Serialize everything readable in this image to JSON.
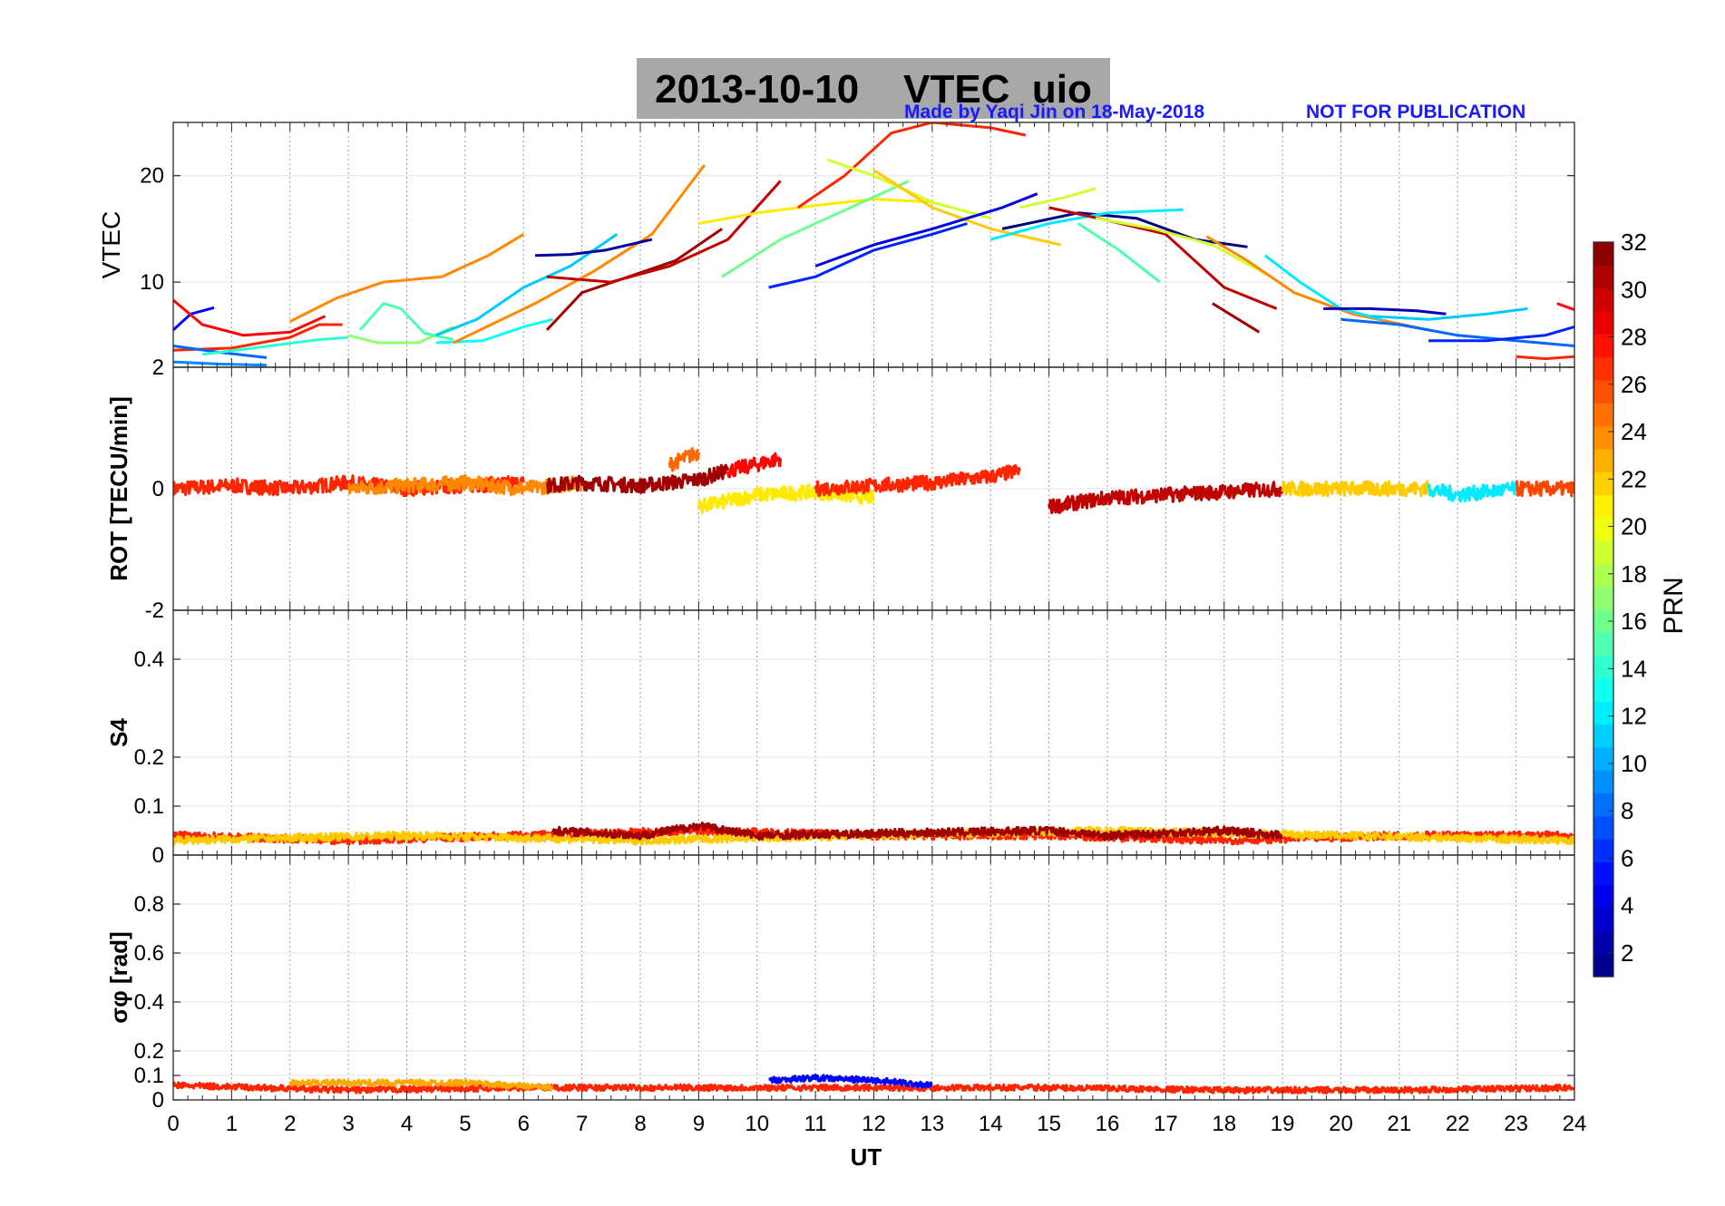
{
  "header": {
    "title": "2013-10-10    VTEC  uio",
    "credit": "Made by Yaqi Jin on 18-May-2018",
    "notice": "NOT FOR PUBLICATION"
  },
  "colorbar": {
    "label": "PRN",
    "ticks": [
      "2",
      "4",
      "6",
      "8",
      "10",
      "12",
      "14",
      "16",
      "18",
      "20",
      "22",
      "24",
      "26",
      "28",
      "30",
      "32"
    ],
    "range": [
      1,
      32
    ],
    "colormap": "jet"
  },
  "chart_data": [
    {
      "type": "line",
      "panel": "vtec",
      "ylabel": "VTEC",
      "xlabel": "",
      "xlim": [
        0,
        24
      ],
      "ylim": [
        2,
        25
      ],
      "yticks": [
        "10",
        "20"
      ],
      "grid": true,
      "series": [
        {
          "prn": 5,
          "x": [
            0.0,
            0.3,
            0.7
          ],
          "y": [
            5.5,
            7.0,
            7.6
          ]
        },
        {
          "prn": 28,
          "x": [
            0.0,
            0.5,
            1.2,
            2.0,
            2.6
          ],
          "y": [
            8.3,
            6.0,
            5.0,
            5.3,
            6.8
          ]
        },
        {
          "prn": 27,
          "x": [
            0.0,
            1.0,
            2.0,
            2.5,
            2.9
          ],
          "y": [
            3.6,
            3.8,
            4.8,
            6.0,
            6.0
          ]
        },
        {
          "prn": 8,
          "x": [
            0.0,
            0.8,
            1.6
          ],
          "y": [
            4.0,
            3.4,
            2.9
          ]
        },
        {
          "prn": 9,
          "x": [
            0.0,
            0.8,
            1.6
          ],
          "y": [
            2.5,
            2.3,
            2.2
          ]
        },
        {
          "prn": 14,
          "x": [
            0.5,
            1.5,
            2.5,
            3.0
          ],
          "y": [
            3.2,
            3.9,
            4.6,
            4.8
          ]
        },
        {
          "prn": 24,
          "x": [
            2.0,
            2.8,
            3.6,
            4.6,
            5.4,
            6.0
          ],
          "y": [
            6.3,
            8.5,
            10.0,
            10.5,
            12.5,
            14.5
          ]
        },
        {
          "prn": 17,
          "x": [
            3.0,
            3.5,
            4.2,
            4.8
          ],
          "y": [
            5.0,
            4.3,
            4.3,
            5.8
          ]
        },
        {
          "prn": 15,
          "x": [
            3.2,
            3.6,
            3.9,
            4.3,
            4.8
          ],
          "y": [
            5.5,
            8.0,
            7.5,
            5.2,
            4.6
          ]
        },
        {
          "prn": 11,
          "x": [
            4.5,
            5.2,
            6.0,
            6.8,
            7.6
          ],
          "y": [
            5.0,
            6.5,
            9.5,
            11.5,
            14.5
          ]
        },
        {
          "prn": 13,
          "x": [
            4.5,
            5.3,
            6.0,
            6.5
          ],
          "y": [
            4.3,
            4.5,
            5.8,
            6.5
          ]
        },
        {
          "prn": 24,
          "x": [
            4.8,
            6.2,
            7.2,
            8.2,
            9.1
          ],
          "y": [
            4.3,
            8.0,
            11.0,
            14.5,
            21.0
          ]
        },
        {
          "prn": 2,
          "x": [
            6.2,
            6.8,
            7.4,
            8.2
          ],
          "y": [
            12.5,
            12.6,
            13.0,
            14.0
          ]
        },
        {
          "prn": 31,
          "x": [
            6.4,
            7.0,
            7.8,
            8.6,
            9.4
          ],
          "y": [
            5.5,
            9.0,
            10.5,
            12.0,
            15.0
          ]
        },
        {
          "prn": 30,
          "x": [
            6.4,
            7.5,
            8.5,
            9.5,
            10.4
          ],
          "y": [
            10.5,
            10.0,
            11.5,
            14.0,
            19.5
          ]
        },
        {
          "prn": 21,
          "x": [
            9.0,
            10.0,
            11.0,
            12.0,
            13.0,
            14.0
          ],
          "y": [
            15.5,
            16.5,
            17.2,
            17.8,
            17.5,
            16.0
          ]
        },
        {
          "prn": 16,
          "x": [
            9.4,
            10.4,
            11.4,
            12.6
          ],
          "y": [
            10.5,
            14.0,
            16.5,
            19.5
          ]
        },
        {
          "prn": 6,
          "x": [
            10.2,
            11.0,
            12.0,
            13.0,
            13.6
          ],
          "y": [
            9.5,
            10.5,
            13.0,
            14.5,
            15.5
          ]
        },
        {
          "prn": 27,
          "x": [
            10.7,
            11.5,
            12.3,
            13.0,
            14.0,
            14.6
          ],
          "y": [
            17.0,
            20.0,
            24.0,
            25.0,
            24.5,
            23.8
          ]
        },
        {
          "prn": 19,
          "x": [
            11.2,
            12.0,
            13.0,
            14.0
          ],
          "y": [
            21.5,
            20.0,
            17.5,
            16.0
          ]
        },
        {
          "prn": 22,
          "x": [
            12.0,
            13.0,
            14.0,
            15.2
          ],
          "y": [
            20.5,
            17.0,
            15.0,
            13.5
          ]
        },
        {
          "prn": 4,
          "x": [
            11.0,
            12.0,
            13.0,
            14.2,
            14.8
          ],
          "y": [
            11.5,
            13.5,
            15.0,
            17.0,
            18.3
          ]
        },
        {
          "prn": 1,
          "x": [
            14.2,
            15.5,
            16.5,
            17.5,
            18.4
          ],
          "y": [
            15.0,
            16.5,
            16.0,
            14.0,
            13.3
          ]
        },
        {
          "prn": 12,
          "x": [
            14.0,
            15.0,
            16.0,
            17.3
          ],
          "y": [
            14.0,
            15.5,
            16.5,
            16.8
          ]
        },
        {
          "prn": 19,
          "x": [
            14.5,
            15.3,
            15.8
          ],
          "y": [
            17.0,
            18.0,
            18.8
          ]
        },
        {
          "prn": 15,
          "x": [
            15.5,
            16.2,
            16.9
          ],
          "y": [
            15.5,
            13.0,
            10.0
          ]
        },
        {
          "prn": 30,
          "x": [
            15.0,
            16.0,
            17.0,
            18.0,
            18.9
          ],
          "y": [
            17.0,
            15.8,
            14.5,
            9.5,
            7.5
          ]
        },
        {
          "prn": 19,
          "x": [
            15.8,
            16.8,
            17.8,
            18.8
          ],
          "y": [
            16.0,
            15.0,
            13.5,
            10.5
          ]
        },
        {
          "prn": 31,
          "x": [
            17.8,
            18.6
          ],
          "y": [
            8.0,
            5.3
          ]
        },
        {
          "prn": 24,
          "x": [
            17.7,
            18.4,
            19.2,
            20.2,
            21.5
          ],
          "y": [
            14.3,
            12.0,
            9.0,
            7.0,
            5.5
          ]
        },
        {
          "prn": 12,
          "x": [
            18.7,
            19.3,
            20.0,
            20.7
          ],
          "y": [
            12.5,
            10.0,
            7.5,
            6.5
          ]
        },
        {
          "prn": 3,
          "x": [
            19.7,
            20.5,
            21.3,
            21.8
          ],
          "y": [
            7.5,
            7.5,
            7.3,
            7.0
          ]
        },
        {
          "prn": 11,
          "x": [
            20.5,
            21.5,
            22.5,
            23.2
          ],
          "y": [
            6.8,
            6.5,
            7.0,
            7.5
          ]
        },
        {
          "prn": 8,
          "x": [
            20.0,
            21.0,
            22.0,
            23.0,
            24.0
          ],
          "y": [
            6.5,
            6.0,
            5.0,
            4.5,
            4.0
          ]
        },
        {
          "prn": 6,
          "x": [
            21.5,
            22.5,
            23.5,
            24.0
          ],
          "y": [
            4.5,
            4.5,
            5.0,
            5.8
          ]
        },
        {
          "prn": 27,
          "x": [
            23.0,
            23.5,
            24.0
          ],
          "y": [
            3.0,
            2.8,
            3.0
          ]
        },
        {
          "prn": 28,
          "x": [
            23.7,
            24.0
          ],
          "y": [
            8.0,
            7.4
          ]
        }
      ]
    },
    {
      "type": "line",
      "panel": "rot",
      "ylabel": "ROT [TECU/min]",
      "xlabel": "",
      "xlim": [
        0,
        24
      ],
      "ylim": [
        -2,
        2
      ],
      "yticks": [
        "-2",
        "0",
        "2"
      ],
      "grid": true,
      "series": [
        {
          "prn": 27,
          "x": [
            0.0,
            1.0,
            2.0,
            3.0,
            4.0,
            5.0,
            6.0
          ],
          "y": [
            0.0,
            0.05,
            0.0,
            0.1,
            0.0,
            0.05,
            0.1
          ]
        },
        {
          "prn": 24,
          "x": [
            3.0,
            4.0,
            5.0,
            6.0,
            7.0
          ],
          "y": [
            0.0,
            0.05,
            0.1,
            0.0,
            0.1
          ]
        },
        {
          "prn": 31,
          "x": [
            6.4,
            7.0,
            8.0,
            9.0,
            9.5
          ],
          "y": [
            0.05,
            0.1,
            0.05,
            0.15,
            0.3
          ]
        },
        {
          "prn": 25,
          "x": [
            8.5,
            9.0
          ],
          "y": [
            0.4,
            0.6
          ]
        },
        {
          "prn": 28,
          "x": [
            9.5,
            10.0,
            10.4
          ],
          "y": [
            0.3,
            0.4,
            0.5
          ]
        },
        {
          "prn": 21,
          "x": [
            9.0,
            10.0,
            11.0,
            12.0
          ],
          "y": [
            -0.3,
            -0.1,
            -0.05,
            -0.15
          ]
        },
        {
          "prn": 27,
          "x": [
            11.0,
            12.0,
            13.0,
            14.0,
            14.5
          ],
          "y": [
            0.0,
            0.05,
            0.1,
            0.2,
            0.3
          ]
        },
        {
          "prn": 30,
          "x": [
            15.0,
            16.0,
            17.0,
            18.0,
            19.0
          ],
          "y": [
            -0.3,
            -0.15,
            -0.1,
            -0.05,
            0.0
          ]
        },
        {
          "prn": 22,
          "x": [
            19.0,
            20.0,
            21.0,
            21.5
          ],
          "y": [
            0.0,
            0.0,
            0.0,
            0.0
          ]
        },
        {
          "prn": 12,
          "x": [
            21.5,
            22.0,
            23.0
          ],
          "y": [
            0.0,
            -0.1,
            0.0
          ]
        },
        {
          "prn": 26,
          "x": [
            23.0,
            23.5,
            24.0
          ],
          "y": [
            0.0,
            0.0,
            0.0
          ]
        }
      ]
    },
    {
      "type": "line",
      "panel": "s4",
      "ylabel": "S4",
      "xlabel": "",
      "xlim": [
        0,
        24
      ],
      "ylim": [
        0,
        0.5
      ],
      "yticks": [
        "0",
        "0.1",
        "0.2",
        "0.4"
      ],
      "grid": true,
      "series": [
        {
          "prn": 27,
          "x": [
            0.0,
            3.0,
            6.0,
            9.0,
            12.0,
            15.0,
            18.0,
            21.0,
            24.0
          ],
          "y": [
            0.04,
            0.03,
            0.04,
            0.05,
            0.04,
            0.04,
            0.03,
            0.04,
            0.04
          ]
        },
        {
          "prn": 22,
          "x": [
            0.0,
            4.0,
            8.0,
            12.0,
            16.0,
            20.0,
            24.0
          ],
          "y": [
            0.03,
            0.04,
            0.03,
            0.04,
            0.05,
            0.04,
            0.03
          ]
        },
        {
          "prn": 31,
          "x": [
            6.5,
            8.0,
            9.0,
            10.0,
            15.0,
            16.0,
            18.0,
            19.0
          ],
          "y": [
            0.05,
            0.04,
            0.06,
            0.04,
            0.05,
            0.04,
            0.05,
            0.04
          ]
        }
      ]
    },
    {
      "type": "line",
      "panel": "sigma_phi",
      "ylabel": "σφ [rad]",
      "xlabel": "UT",
      "xlim": [
        0,
        24
      ],
      "ylim": [
        0,
        1
      ],
      "yticks": [
        "0",
        "0.1",
        "0.2",
        "0.4",
        "0.6",
        "0.8"
      ],
      "xticks": [
        "0",
        "1",
        "2",
        "3",
        "4",
        "5",
        "6",
        "7",
        "8",
        "9",
        "10",
        "11",
        "12",
        "13",
        "14",
        "15",
        "16",
        "17",
        "18",
        "19",
        "20",
        "21",
        "22",
        "23",
        "24"
      ],
      "grid": true,
      "series": [
        {
          "prn": 27,
          "x": [
            0.0,
            3.0,
            6.0,
            9.0,
            12.0,
            15.0,
            18.0,
            21.0,
            24.0
          ],
          "y": [
            0.06,
            0.04,
            0.05,
            0.05,
            0.05,
            0.05,
            0.04,
            0.04,
            0.05
          ]
        },
        {
          "prn": 23,
          "x": [
            2.0,
            3.5,
            5.0,
            6.5
          ],
          "y": [
            0.07,
            0.07,
            0.07,
            0.05
          ]
        },
        {
          "prn": 5,
          "x": [
            10.2,
            11.0,
            12.0,
            13.0
          ],
          "y": [
            0.08,
            0.09,
            0.08,
            0.06
          ]
        }
      ]
    }
  ]
}
